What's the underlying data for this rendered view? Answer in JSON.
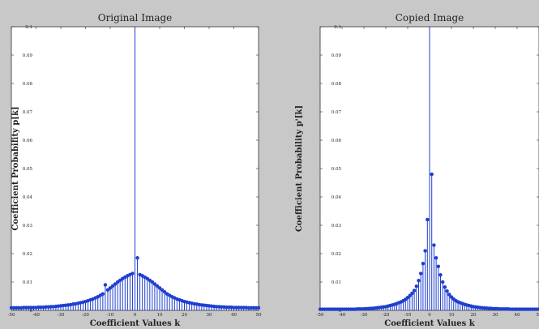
{
  "chart_data": [
    {
      "type": "stem",
      "title": "Original Image",
      "xlabel": "Coefficient Values k",
      "ylabel": "Coefficient Probability p[k]",
      "xlim": [
        -50,
        50
      ],
      "ylim": [
        0,
        0.1
      ],
      "x_ticks": [
        -50,
        -40,
        -30,
        -20,
        -10,
        0,
        10,
        20,
        30,
        40,
        50
      ],
      "x_tick_labels": [
        "-50",
        "-40",
        "-30",
        "-20",
        "-10",
        "0",
        "10",
        "20",
        "30",
        "40",
        "50"
      ],
      "y_ticks": [
        0,
        0.01,
        0.02,
        0.03,
        0.04,
        0.05,
        0.06,
        0.07,
        0.08,
        0.09,
        0.1
      ],
      "y_tick_labels": [
        "0",
        "0.01",
        "0.02",
        "0.03",
        "0.04",
        "0.05",
        "0.06",
        "0.07",
        "0.08",
        "0.09",
        "0.1"
      ],
      "grid": false,
      "color": "#1f3fd0",
      "x": [
        -50,
        -49,
        -48,
        -47,
        -46,
        -45,
        -44,
        -43,
        -42,
        -41,
        -40,
        -39,
        -38,
        -37,
        -36,
        -35,
        -34,
        -33,
        -32,
        -31,
        -30,
        -29,
        -28,
        -27,
        -26,
        -25,
        -24,
        -23,
        -22,
        -21,
        -20,
        -19,
        -18,
        -17,
        -16,
        -15,
        -14,
        -13,
        -12,
        -11,
        -10,
        -9,
        -8,
        -7,
        -6,
        -5,
        -4,
        -3,
        -2,
        -1,
        0,
        1,
        2,
        3,
        4,
        5,
        6,
        7,
        8,
        9,
        10,
        11,
        12,
        13,
        14,
        15,
        16,
        17,
        18,
        19,
        20,
        21,
        22,
        23,
        24,
        25,
        26,
        27,
        28,
        29,
        30,
        31,
        32,
        33,
        34,
        35,
        36,
        37,
        38,
        39,
        40,
        41,
        42,
        43,
        44,
        45,
        46,
        47,
        48,
        49,
        50
      ],
      "y": [
        0.0009,
        0.0009,
        0.0009,
        0.0009,
        0.0009,
        0.001,
        0.001,
        0.001,
        0.001,
        0.001,
        0.001,
        0.0011,
        0.0011,
        0.0011,
        0.0012,
        0.0012,
        0.0013,
        0.0013,
        0.0014,
        0.0015,
        0.0016,
        0.0017,
        0.0018,
        0.0019,
        0.002,
        0.0022,
        0.0023,
        0.0025,
        0.0027,
        0.0029,
        0.0031,
        0.0034,
        0.0037,
        0.004,
        0.0044,
        0.0048,
        0.0053,
        0.0058,
        0.009,
        0.0072,
        0.0079,
        0.0086,
        0.0093,
        0.01,
        0.0106,
        0.0112,
        0.0117,
        0.0122,
        0.0126,
        0.013,
        0.1,
        0.0185,
        0.0126,
        0.0122,
        0.0117,
        0.0112,
        0.0106,
        0.01,
        0.0093,
        0.0086,
        0.0079,
        0.0072,
        0.0065,
        0.0058,
        0.0053,
        0.0048,
        0.0044,
        0.004,
        0.0037,
        0.0034,
        0.0031,
        0.0029,
        0.0027,
        0.0025,
        0.0023,
        0.0022,
        0.002,
        0.0019,
        0.0018,
        0.0017,
        0.0016,
        0.0015,
        0.0014,
        0.0013,
        0.0013,
        0.0012,
        0.0012,
        0.0011,
        0.0011,
        0.0011,
        0.001,
        0.001,
        0.001,
        0.001,
        0.001,
        0.001,
        0.0009,
        0.0009,
        0.0009,
        0.0009,
        0.0009
      ]
    },
    {
      "type": "stem",
      "title": "Copied Image",
      "xlabel": "Coefficient Values k",
      "ylabel": "Coefficient Probability p'[k]",
      "xlim": [
        -50,
        50
      ],
      "ylim": [
        0,
        0.1
      ],
      "x_ticks": [
        -50,
        -40,
        -30,
        -20,
        -10,
        0,
        10,
        20,
        30,
        40,
        50
      ],
      "x_tick_labels": [
        "-50",
        "-40",
        "-30",
        "-20",
        "-10",
        "0",
        "10",
        "20",
        "30",
        "40",
        "50"
      ],
      "y_ticks": [
        0,
        0.01,
        0.02,
        0.03,
        0.04,
        0.05,
        0.06,
        0.07,
        0.08,
        0.09,
        0.1
      ],
      "y_tick_labels": [
        "0",
        "0.01",
        "0.02",
        "0.03",
        "0.04",
        "0.05",
        "0.06",
        "0.07",
        "0.08",
        "0.09",
        "0.1"
      ],
      "grid": false,
      "color": "#1f3fd0",
      "x": [
        -50,
        -49,
        -48,
        -47,
        -46,
        -45,
        -44,
        -43,
        -42,
        -41,
        -40,
        -39,
        -38,
        -37,
        -36,
        -35,
        -34,
        -33,
        -32,
        -31,
        -30,
        -29,
        -28,
        -27,
        -26,
        -25,
        -24,
        -23,
        -22,
        -21,
        -20,
        -19,
        -18,
        -17,
        -16,
        -15,
        -14,
        -13,
        -12,
        -11,
        -10,
        -9,
        -8,
        -7,
        -6,
        -5,
        -4,
        -3,
        -2,
        -1,
        0,
        1,
        2,
        3,
        4,
        5,
        6,
        7,
        8,
        9,
        10,
        11,
        12,
        13,
        14,
        15,
        16,
        17,
        18,
        19,
        20,
        21,
        22,
        23,
        24,
        25,
        26,
        27,
        28,
        29,
        30,
        31,
        32,
        33,
        34,
        35,
        36,
        37,
        38,
        39,
        40,
        41,
        42,
        43,
        44,
        45,
        46,
        47,
        48,
        49,
        50
      ],
      "y": [
        0.0004,
        0.0004,
        0.0004,
        0.0004,
        0.0004,
        0.0004,
        0.0004,
        0.0004,
        0.0004,
        0.0004,
        0.0004,
        0.0004,
        0.0004,
        0.0004,
        0.0004,
        0.0004,
        0.0004,
        0.0005,
        0.0005,
        0.0005,
        0.0005,
        0.0006,
        0.0006,
        0.0007,
        0.0007,
        0.0008,
        0.0009,
        0.001,
        0.0011,
        0.0012,
        0.0013,
        0.0015,
        0.0017,
        0.0019,
        0.0021,
        0.0024,
        0.0027,
        0.003,
        0.0034,
        0.0039,
        0.0045,
        0.0052,
        0.006,
        0.007,
        0.0085,
        0.0105,
        0.013,
        0.0165,
        0.021,
        0.032,
        0.1,
        0.048,
        0.023,
        0.0185,
        0.0155,
        0.0125,
        0.01,
        0.0082,
        0.0068,
        0.0056,
        0.0047,
        0.004,
        0.0034,
        0.003,
        0.0027,
        0.0024,
        0.0021,
        0.0019,
        0.0017,
        0.0015,
        0.0013,
        0.0012,
        0.0011,
        0.001,
        0.0009,
        0.0008,
        0.0008,
        0.0007,
        0.0007,
        0.0006,
        0.0006,
        0.0006,
        0.0005,
        0.0005,
        0.0005,
        0.0005,
        0.0005,
        0.0004,
        0.0004,
        0.0004,
        0.0004,
        0.0004,
        0.0004,
        0.0004,
        0.0004,
        0.0004,
        0.0004,
        0.0004,
        0.0004,
        0.0004,
        0.0004
      ]
    }
  ]
}
